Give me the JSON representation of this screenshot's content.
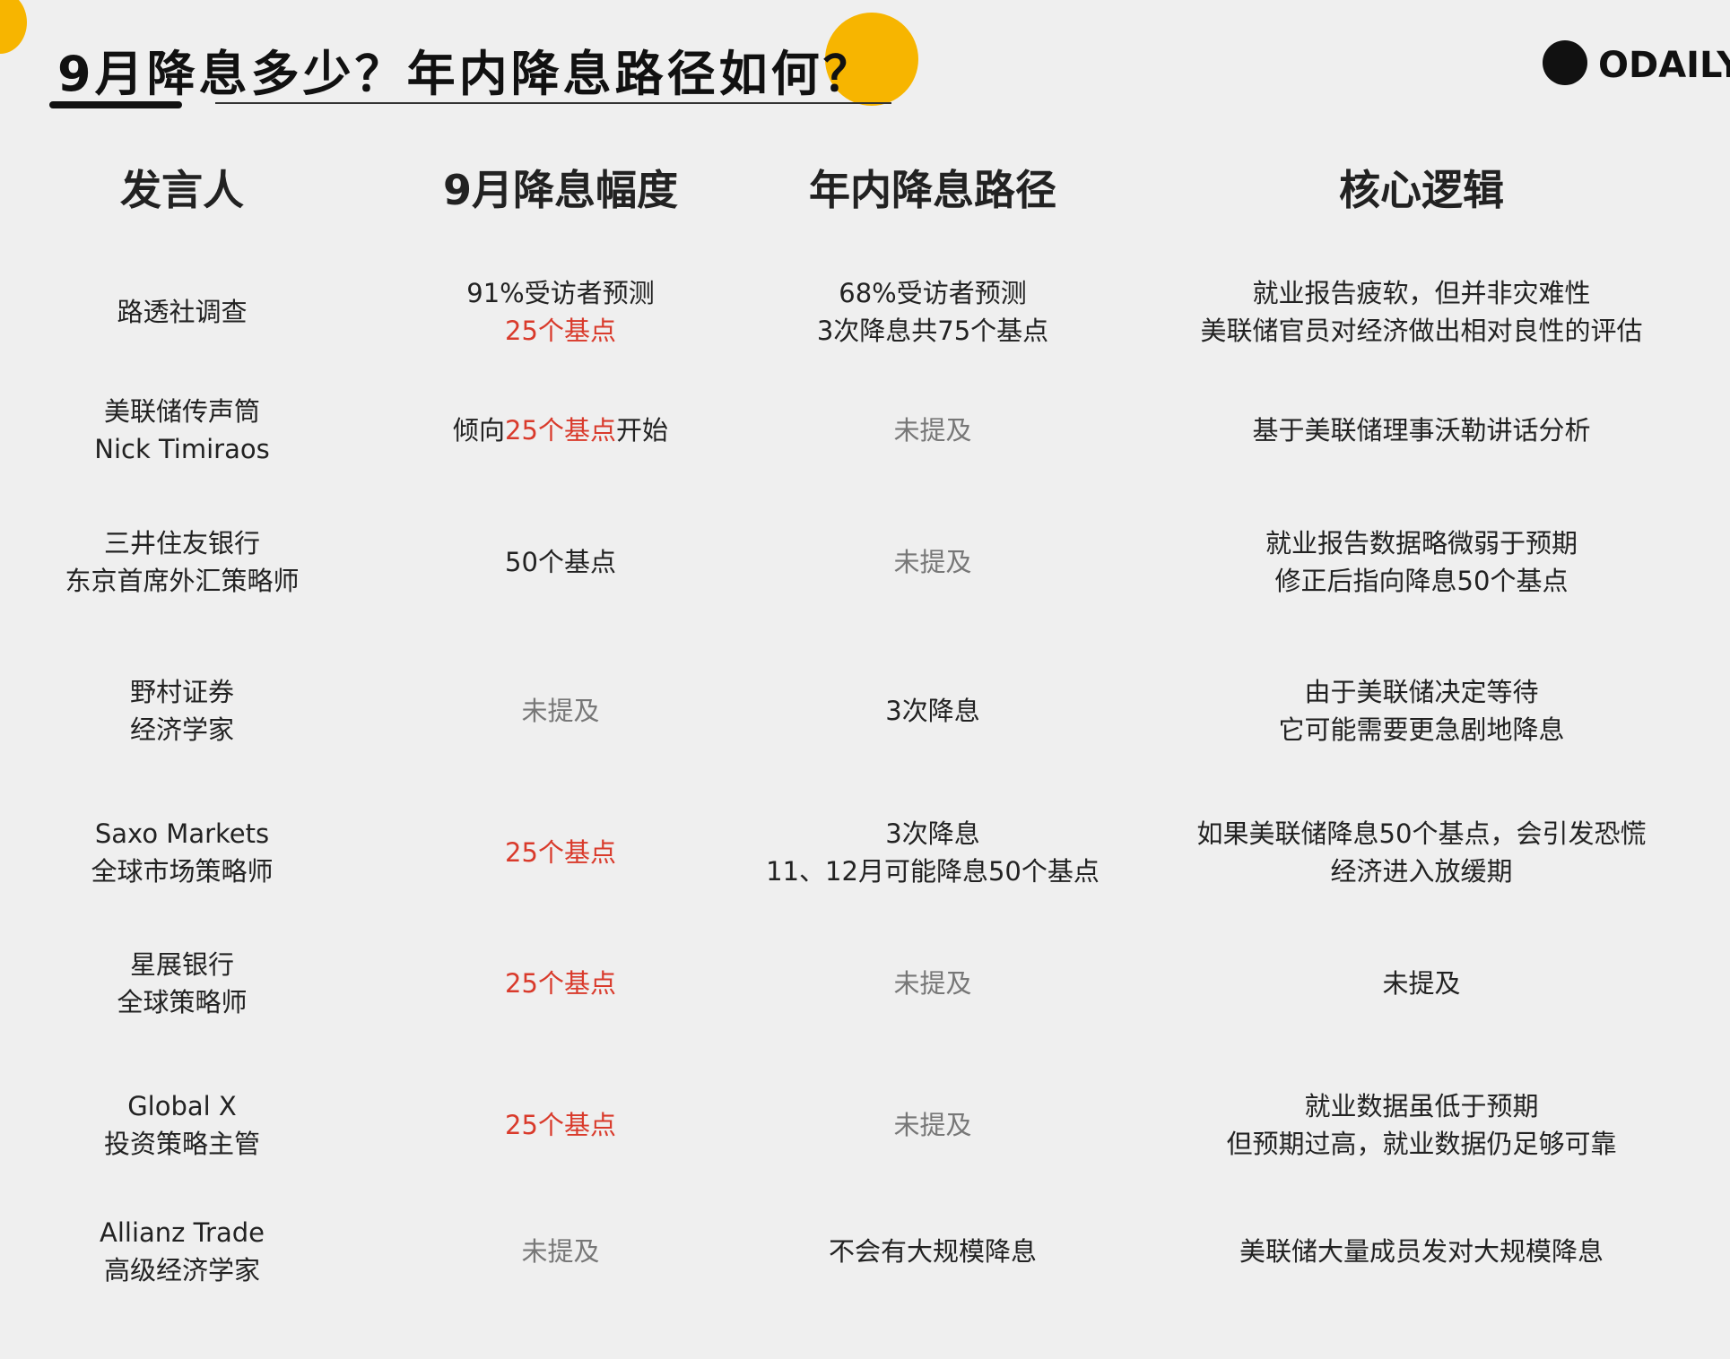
{
  "header": {
    "title": "9月降息多少？年内降息路径如何？",
    "logo": "ODAILY"
  },
  "table": {
    "columns": [
      "发言人",
      "9月降息幅度",
      "年内降息路径",
      "核心逻辑"
    ],
    "rows": [
      [
        {
          "lines": [
            "路透社调查"
          ]
        },
        {
          "lines": [
            "91%受访者预测",
            [
              {
                "text": "25个基点",
                "color": "#d93a2b"
              }
            ]
          ]
        },
        {
          "lines": [
            "68%受访者预测",
            "3次降息共75个基点"
          ]
        },
        {
          "lines": [
            "就业报告疲软，但并非灾难性",
            "美联储官员对经济做出相对良性的评估"
          ]
        }
      ],
      [
        {
          "lines": [
            "美联储传声筒",
            "Nick Timiraos"
          ]
        },
        {
          "lines": [
            [
              {
                "text": "倾向",
                "color": "#222222"
              },
              {
                "text": "25个基点",
                "color": "#d93a2b"
              },
              {
                "text": "开始",
                "color": "#222222"
              }
            ]
          ]
        },
        {
          "lines": [
            "未提及"
          ],
          "color": "#777777"
        },
        {
          "lines": [
            "基于美联储理事沃勒讲话分析"
          ]
        }
      ],
      [
        {
          "lines": [
            "三井住友银行",
            "东京首席外汇策略师"
          ]
        },
        {
          "lines": [
            "50个基点"
          ]
        },
        {
          "lines": [
            "未提及"
          ],
          "color": "#777777"
        },
        {
          "lines": [
            "就业报告数据略微弱于预期",
            "修正后指向降息50个基点"
          ]
        }
      ],
      [
        {
          "lines": [
            "野村证券",
            "经济学家"
          ]
        },
        {
          "lines": [
            "未提及"
          ],
          "color": "#777777"
        },
        {
          "lines": [
            "3次降息"
          ]
        },
        {
          "lines": [
            "由于美联储决定等待",
            "它可能需要更急剧地降息"
          ]
        }
      ],
      [
        {
          "lines": [
            "Saxo Markets",
            "全球市场策略师"
          ]
        },
        {
          "lines": [
            "25个基点"
          ],
          "color": "#d93a2b"
        },
        {
          "lines": [
            "3次降息",
            "11、12月可能降息50个基点"
          ]
        },
        {
          "lines": [
            "如果美联储降息50个基点，会引发恐慌",
            "经济进入放缓期"
          ]
        }
      ],
      [
        {
          "lines": [
            "星展银行",
            "全球策略师"
          ]
        },
        {
          "lines": [
            "25个基点"
          ],
          "color": "#d93a2b"
        },
        {
          "lines": [
            "未提及"
          ],
          "color": "#777777"
        },
        {
          "lines": [
            "未提及"
          ]
        }
      ],
      [
        {
          "lines": [
            "Global X",
            "投资策略主管"
          ]
        },
        {
          "lines": [
            "25个基点"
          ],
          "color": "#d93a2b"
        },
        {
          "lines": [
            "未提及"
          ],
          "color": "#777777"
        },
        {
          "lines": [
            "就业数据虽低于预期",
            "但预期过高，就业数据仍足够可靠"
          ]
        }
      ],
      [
        {
          "lines": [
            "Allianz Trade",
            "高级经济学家"
          ]
        },
        {
          "lines": [
            "未提及"
          ],
          "color": "#777777"
        },
        {
          "lines": [
            "不会有大规模降息"
          ]
        },
        {
          "lines": [
            "美联储大量成员发对大规模降息"
          ]
        }
      ]
    ]
  }
}
